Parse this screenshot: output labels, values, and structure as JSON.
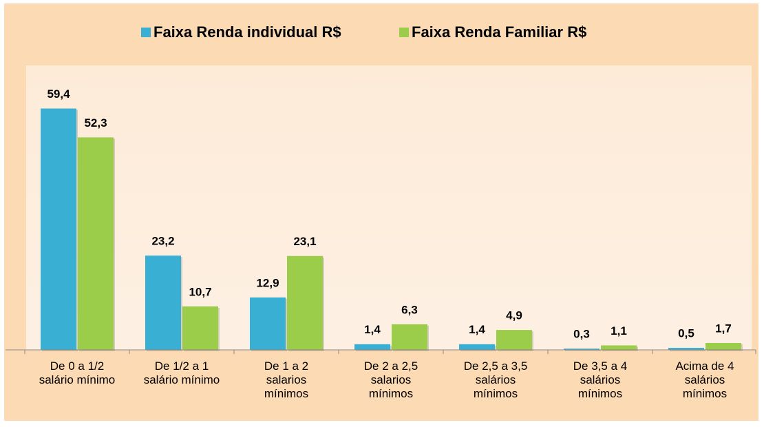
{
  "chart_data": {
    "type": "bar",
    "categories": [
      "De 0 a 1/2\nsalário mínimo",
      "De 1/2  a 1\nsalário mínimo",
      "De 1  a 2\nsalarios\nmínimos",
      "De 2  a 2,5\nsalarios\nmínimos",
      "De 2,5 a 3,5\nsalários\nmínimos",
      "De 3,5 a 4\nsalários\nmínimos",
      "Acima de 4\nsalários\nmínimos"
    ],
    "series": [
      {
        "name": "Faixa Renda individual R$",
        "color": "#3aafd4",
        "values": [
          59.4,
          23.2,
          12.9,
          1.4,
          1.4,
          0.3,
          0.5
        ],
        "value_labels": [
          "59,4",
          "23,2",
          "12,9",
          "1,4",
          "1,4",
          "0,3",
          "0,5"
        ]
      },
      {
        "name": "Faixa Renda Familiar R$",
        "color": "#9ccd4a",
        "values": [
          52.3,
          10.7,
          23.1,
          6.3,
          4.9,
          1.1,
          1.7
        ],
        "value_labels": [
          "52,3",
          "10,7",
          "23,1",
          "6,3",
          "4,9",
          "1,1",
          "1,7"
        ]
      }
    ],
    "ylim": [
      0,
      70
    ],
    "legend": "top"
  }
}
